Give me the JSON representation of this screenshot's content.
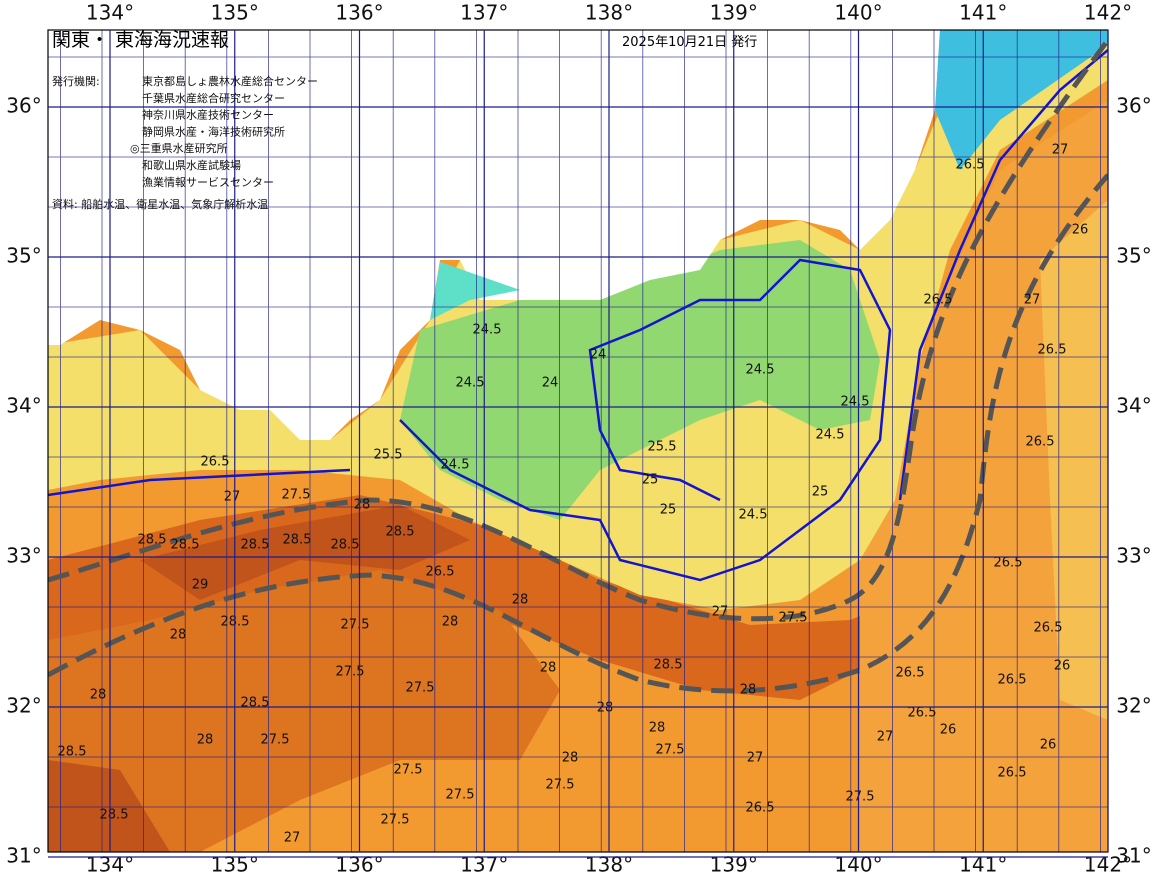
{
  "map": {
    "title": "関東・ 東海海況速報",
    "date": "2025年10月21日 発行",
    "issuer_label": "発行機関:",
    "issuers": [
      "東京都島しょ農林水産総合センター",
      "千葉県水産総合研究センター",
      "神奈川県水産技術センター",
      "静岡県水産・海洋技術研究所",
      "◎三重県水産研究所",
      "和歌山県水産試験場",
      "漁業情報サービスセンター"
    ],
    "source": "資料: 船舶水温、衛星水温、気象庁解析水温",
    "lon_labels": [
      "134°",
      "135°",
      "136°",
      "137°",
      "138°",
      "139°",
      "140°",
      "141°",
      "142°"
    ],
    "lat_labels": [
      "36°",
      "35°",
      "34°",
      "33°",
      "32°",
      "31°"
    ],
    "contour_labels": [
      "26.5",
      "27",
      "27.5",
      "28",
      "28.5",
      "28.5",
      "28.5",
      "28.5",
      "28.5",
      "28.5",
      "29",
      "28",
      "28.5",
      "27.5",
      "28",
      "26.5",
      "28",
      "27.5",
      "27.5",
      "28",
      "28",
      "28.5",
      "27.5",
      "28.5",
      "28",
      "27.5",
      "27.5",
      "27.5",
      "28",
      "28.5",
      "27.5",
      "27",
      "25.5",
      "24.5",
      "24.5",
      "24",
      "24.5",
      "24",
      "24.5",
      "24.5",
      "24.5",
      "25.5",
      "25",
      "25",
      "25",
      "24.5",
      "27",
      "27.5",
      "28",
      "28.5",
      "26.5",
      "27",
      "26",
      "27",
      "26.5",
      "26.5",
      "26.5",
      "26.5",
      "26.5",
      "26",
      "26.5",
      "26.5",
      "26",
      "26.5",
      "26.5",
      "27.5",
      "26.5",
      "27",
      "26",
      "27",
      "28",
      "28",
      "27.5"
    ]
  }
}
